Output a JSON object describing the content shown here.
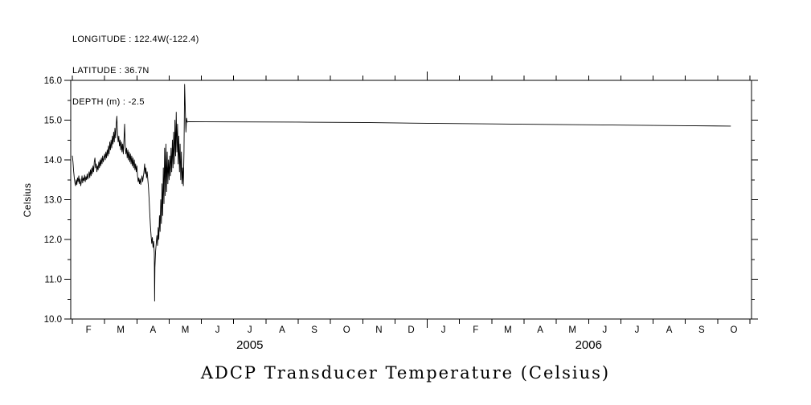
{
  "header": {
    "line1": "LONGITUDE : 122.4W(-122.4)",
    "line2": "LATITUDE : 36.7N",
    "line3": "DEPTH (m) : -2.5"
  },
  "title": "ADCP Transducer Temperature (Celsius)",
  "chart_data": {
    "type": "line",
    "title": "ADCP Transducer Temperature (Celsius)",
    "xlabel": "",
    "ylabel": "Celsius",
    "background": "#ffffff",
    "line_color": "#000000",
    "grid": false,
    "ylim": [
      10.0,
      16.0
    ],
    "y_major_ticks": [
      {
        "value": 10.0,
        "label": "10.0"
      },
      {
        "value": 11.0,
        "label": "11.0"
      },
      {
        "value": 12.0,
        "label": "12.0"
      },
      {
        "value": 13.0,
        "label": "13.0"
      },
      {
        "value": 14.0,
        "label": "14.0"
      },
      {
        "value": 15.0,
        "label": "15.0"
      },
      {
        "value": 16.0,
        "label": "16.0"
      }
    ],
    "y_minor_step": 0.5,
    "x_unit": "months since 2005-01-01",
    "xlim": [
      0.95,
      22.05
    ],
    "x_month_ticks": [
      1,
      22
    ],
    "year_boundary_ticks": [
      12
    ],
    "month_labels": [
      {
        "pos": 1.5,
        "label": "F"
      },
      {
        "pos": 2.5,
        "label": "M"
      },
      {
        "pos": 3.5,
        "label": "A"
      },
      {
        "pos": 4.5,
        "label": "M"
      },
      {
        "pos": 5.5,
        "label": "J"
      },
      {
        "pos": 6.5,
        "label": "J"
      },
      {
        "pos": 7.5,
        "label": "A"
      },
      {
        "pos": 8.5,
        "label": "S"
      },
      {
        "pos": 9.5,
        "label": "O"
      },
      {
        "pos": 10.5,
        "label": "N"
      },
      {
        "pos": 11.5,
        "label": "D"
      },
      {
        "pos": 12.5,
        "label": "J"
      },
      {
        "pos": 13.5,
        "label": "F"
      },
      {
        "pos": 14.5,
        "label": "M"
      },
      {
        "pos": 15.5,
        "label": "A"
      },
      {
        "pos": 16.5,
        "label": "M"
      },
      {
        "pos": 17.5,
        "label": "J"
      },
      {
        "pos": 18.5,
        "label": "J"
      },
      {
        "pos": 19.5,
        "label": "A"
      },
      {
        "pos": 20.5,
        "label": "S"
      },
      {
        "pos": 21.5,
        "label": "O"
      }
    ],
    "year_labels": [
      {
        "pos": 6.5,
        "label": "2005"
      },
      {
        "pos": 17.0,
        "label": "2006"
      }
    ],
    "series": [
      {
        "name": "ADCP transducer temperature",
        "points": [
          [
            1.0,
            14.1
          ],
          [
            1.02,
            13.95
          ],
          [
            1.04,
            13.72
          ],
          [
            1.06,
            13.55
          ],
          [
            1.08,
            13.42
          ],
          [
            1.1,
            13.35
          ],
          [
            1.12,
            13.5
          ],
          [
            1.14,
            13.38
          ],
          [
            1.16,
            13.55
          ],
          [
            1.18,
            13.45
          ],
          [
            1.2,
            13.6
          ],
          [
            1.22,
            13.4
          ],
          [
            1.24,
            13.52
          ],
          [
            1.26,
            13.35
          ],
          [
            1.28,
            13.45
          ],
          [
            1.3,
            13.6
          ],
          [
            1.32,
            13.42
          ],
          [
            1.34,
            13.55
          ],
          [
            1.36,
            13.48
          ],
          [
            1.38,
            13.62
          ],
          [
            1.4,
            13.45
          ],
          [
            1.42,
            13.58
          ],
          [
            1.44,
            13.5
          ],
          [
            1.46,
            13.65
          ],
          [
            1.48,
            13.52
          ],
          [
            1.5,
            13.6
          ],
          [
            1.52,
            13.7
          ],
          [
            1.54,
            13.55
          ],
          [
            1.56,
            13.75
          ],
          [
            1.58,
            13.6
          ],
          [
            1.6,
            13.8
          ],
          [
            1.62,
            13.65
          ],
          [
            1.64,
            13.85
          ],
          [
            1.66,
            13.7
          ],
          [
            1.68,
            13.95
          ],
          [
            1.7,
            14.05
          ],
          [
            1.72,
            13.8
          ],
          [
            1.74,
            13.9
          ],
          [
            1.76,
            13.7
          ],
          [
            1.78,
            13.85
          ],
          [
            1.8,
            13.75
          ],
          [
            1.82,
            13.95
          ],
          [
            1.84,
            13.8
          ],
          [
            1.86,
            14.0
          ],
          [
            1.88,
            13.85
          ],
          [
            1.9,
            14.05
          ],
          [
            1.92,
            13.9
          ],
          [
            1.94,
            14.1
          ],
          [
            1.96,
            13.95
          ],
          [
            1.98,
            14.05
          ],
          [
            2.0,
            14.15
          ],
          [
            2.02,
            14.0
          ],
          [
            2.04,
            14.2
          ],
          [
            2.06,
            14.05
          ],
          [
            2.08,
            14.25
          ],
          [
            2.1,
            14.1
          ],
          [
            2.12,
            14.35
          ],
          [
            2.14,
            14.15
          ],
          [
            2.16,
            14.45
          ],
          [
            2.18,
            14.25
          ],
          [
            2.2,
            14.5
          ],
          [
            2.22,
            14.3
          ],
          [
            2.24,
            14.6
          ],
          [
            2.26,
            14.4
          ],
          [
            2.28,
            14.7
          ],
          [
            2.3,
            14.45
          ],
          [
            2.32,
            14.8
          ],
          [
            2.34,
            14.55
          ],
          [
            2.36,
            14.9
          ],
          [
            2.38,
            15.1
          ],
          [
            2.4,
            14.65
          ],
          [
            2.42,
            14.45
          ],
          [
            2.44,
            14.6
          ],
          [
            2.46,
            14.35
          ],
          [
            2.48,
            14.5
          ],
          [
            2.5,
            14.25
          ],
          [
            2.52,
            14.45
          ],
          [
            2.54,
            14.2
          ],
          [
            2.56,
            14.4
          ],
          [
            2.58,
            14.15
          ],
          [
            2.6,
            14.5
          ],
          [
            2.62,
            14.9
          ],
          [
            2.64,
            14.35
          ],
          [
            2.66,
            14.15
          ],
          [
            2.68,
            14.3
          ],
          [
            2.7,
            14.05
          ],
          [
            2.72,
            14.25
          ],
          [
            2.74,
            14.0
          ],
          [
            2.76,
            14.2
          ],
          [
            2.78,
            13.95
          ],
          [
            2.8,
            14.15
          ],
          [
            2.82,
            13.9
          ],
          [
            2.84,
            14.1
          ],
          [
            2.86,
            13.85
          ],
          [
            2.88,
            14.05
          ],
          [
            2.9,
            13.8
          ],
          [
            2.92,
            14.0
          ],
          [
            2.94,
            13.75
          ],
          [
            2.96,
            13.9
          ],
          [
            2.98,
            13.7
          ],
          [
            3.0,
            13.85
          ],
          [
            3.02,
            13.6
          ],
          [
            3.04,
            13.45
          ],
          [
            3.06,
            13.55
          ],
          [
            3.08,
            13.4
          ],
          [
            3.1,
            13.52
          ],
          [
            3.12,
            13.38
          ],
          [
            3.14,
            13.5
          ],
          [
            3.16,
            13.6
          ],
          [
            3.18,
            13.45
          ],
          [
            3.2,
            13.58
          ],
          [
            3.22,
            13.7
          ],
          [
            3.24,
            13.9
          ],
          [
            3.26,
            13.65
          ],
          [
            3.28,
            13.8
          ],
          [
            3.3,
            13.55
          ],
          [
            3.32,
            13.7
          ],
          [
            3.34,
            13.5
          ],
          [
            3.36,
            13.3
          ],
          [
            3.38,
            13.0
          ],
          [
            3.4,
            12.65
          ],
          [
            3.42,
            12.35
          ],
          [
            3.44,
            12.1
          ],
          [
            3.46,
            11.9
          ],
          [
            3.48,
            12.05
          ],
          [
            3.5,
            11.8
          ],
          [
            3.52,
            11.95
          ],
          [
            3.54,
            11.65
          ],
          [
            3.55,
            10.45
          ],
          [
            3.56,
            11.3
          ],
          [
            3.58,
            11.7
          ],
          [
            3.6,
            11.9
          ],
          [
            3.62,
            12.1
          ],
          [
            3.64,
            11.85
          ],
          [
            3.66,
            12.3
          ],
          [
            3.68,
            12.0
          ],
          [
            3.7,
            12.6
          ],
          [
            3.72,
            12.2
          ],
          [
            3.74,
            13.0
          ],
          [
            3.76,
            12.4
          ],
          [
            3.78,
            13.4
          ],
          [
            3.8,
            12.6
          ],
          [
            3.82,
            13.8
          ],
          [
            3.84,
            12.9
          ],
          [
            3.86,
            14.3
          ],
          [
            3.88,
            13.1
          ],
          [
            3.9,
            14.4
          ],
          [
            3.92,
            13.2
          ],
          [
            3.94,
            14.2
          ],
          [
            3.96,
            13.4
          ],
          [
            3.98,
            14.0
          ],
          [
            4.0,
            13.5
          ],
          [
            4.02,
            14.1
          ],
          [
            4.04,
            13.6
          ],
          [
            4.06,
            14.3
          ],
          [
            4.08,
            13.7
          ],
          [
            4.1,
            14.5
          ],
          [
            4.12,
            13.8
          ],
          [
            4.14,
            14.7
          ],
          [
            4.16,
            13.9
          ],
          [
            4.18,
            15.0
          ],
          [
            4.2,
            14.1
          ],
          [
            4.22,
            15.2
          ],
          [
            4.24,
            14.2
          ],
          [
            4.26,
            14.9
          ],
          [
            4.28,
            13.9
          ],
          [
            4.3,
            14.6
          ],
          [
            4.32,
            13.7
          ],
          [
            4.34,
            14.4
          ],
          [
            4.36,
            13.5
          ],
          [
            4.38,
            14.2
          ],
          [
            4.4,
            13.4
          ],
          [
            4.42,
            13.8
          ],
          [
            4.44,
            13.35
          ],
          [
            4.46,
            14.2
          ],
          [
            4.48,
            15.9
          ],
          [
            4.5,
            15.3
          ],
          [
            4.52,
            14.7
          ],
          [
            4.54,
            15.05
          ],
          [
            4.56,
            14.95
          ],
          [
            4.6,
            14.96
          ],
          [
            6.0,
            14.955
          ],
          [
            8.0,
            14.95
          ],
          [
            10.0,
            14.94
          ],
          [
            12.0,
            14.92
          ],
          [
            14.0,
            14.905
          ],
          [
            16.0,
            14.89
          ],
          [
            18.0,
            14.875
          ],
          [
            20.0,
            14.86
          ],
          [
            21.4,
            14.85
          ]
        ]
      }
    ]
  }
}
